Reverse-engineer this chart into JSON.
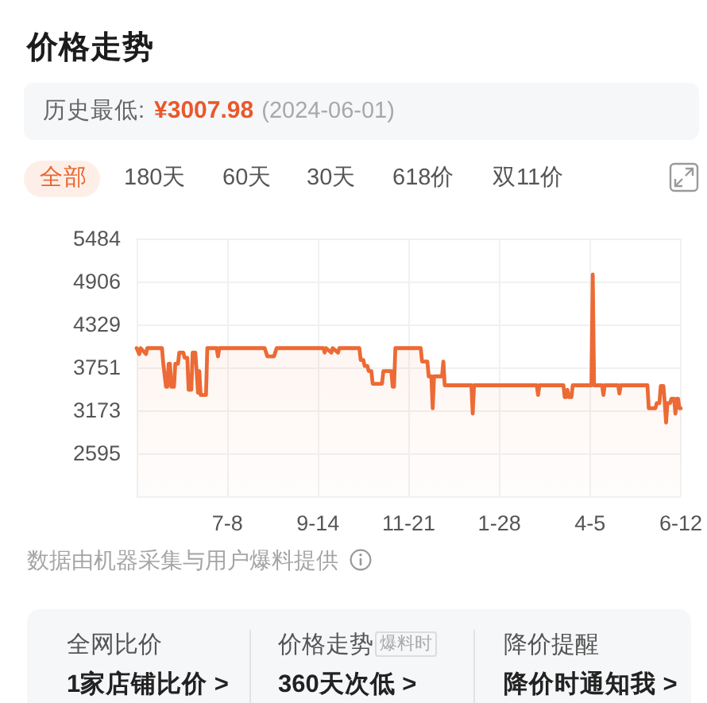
{
  "chart_data": {
    "type": "area",
    "title": "价格走势",
    "subtitle": "历史最低:",
    "annotations": [
      "¥3007.98",
      "(2024-06-01)",
      "全部",
      "180天",
      "60天",
      "30天",
      "618价",
      "双11价",
      "数据由机器采集与用户爆料提供",
      "全网比价",
      "1家店铺比价 >",
      "价格走势",
      "爆料时",
      "360天次低 >",
      "降价提醒",
      "降价时通知我 >"
    ],
    "x": [
      "2023-05-01",
      "2023-05-03",
      "2023-05-04",
      "2023-05-08",
      "2023-05-09",
      "2023-05-20",
      "2023-05-21",
      "2023-05-23",
      "2023-05-24",
      "2023-05-25",
      "2023-05-26",
      "2023-05-27",
      "2023-05-29",
      "2023-05-30",
      "2023-06-01",
      "2023-06-02",
      "2023-06-05",
      "2023-06-06",
      "2023-06-08",
      "2023-06-09",
      "2023-06-11",
      "2023-06-12",
      "2023-06-14",
      "2023-06-15",
      "2023-06-16",
      "2023-06-17",
      "2023-06-18",
      "2023-06-22",
      "2023-06-23",
      "2023-06-30",
      "2023-07-01",
      "2023-07-02",
      "2023-08-05",
      "2023-08-07",
      "2023-08-12",
      "2023-08-14",
      "2023-09-18",
      "2023-09-19",
      "2023-09-20",
      "2023-09-24",
      "2023-09-25",
      "2023-09-29",
      "2023-09-30",
      "2023-10-15",
      "2023-10-16",
      "2023-10-18",
      "2023-10-19",
      "2023-10-21",
      "2023-10-22",
      "2023-10-24",
      "2023-10-25",
      "2023-11-01",
      "2023-11-02",
      "2023-11-08",
      "2023-11-09",
      "2023-11-10",
      "2023-11-11",
      "2023-11-30",
      "2023-12-01",
      "2023-12-05",
      "2023-12-06",
      "2023-12-08",
      "2023-12-09",
      "2023-12-10",
      "2023-12-16",
      "2023-12-17",
      "2023-12-18",
      "2024-01-07",
      "2024-01-08",
      "2024-01-09",
      "2024-02-25",
      "2024-02-26",
      "2024-02-27",
      "2024-03-16",
      "2024-03-17",
      "2024-03-18",
      "2024-03-19",
      "2024-03-20",
      "2024-03-22",
      "2024-03-23",
      "2024-04-06",
      "2024-04-07",
      "2024-04-08",
      "2024-04-14",
      "2024-04-15",
      "2024-04-16",
      "2024-04-26",
      "2024-04-27",
      "2024-04-28",
      "2024-05-18",
      "2024-05-19",
      "2024-05-24",
      "2024-05-25",
      "2024-05-27",
      "2024-05-28",
      "2024-05-30",
      "2024-05-31",
      "2024-06-01",
      "2024-06-02",
      "2024-06-04",
      "2024-06-05",
      "2024-06-07",
      "2024-06-08",
      "2024-06-09",
      "2024-06-10",
      "2024-06-11",
      "2024-06-12"
    ],
    "values": [
      4010,
      3930,
      4010,
      3930,
      4010,
      4010,
      3800,
      3490,
      3490,
      3800,
      3800,
      3490,
      3490,
      3800,
      3800,
      3950,
      3950,
      3880,
      3880,
      3450,
      3450,
      3950,
      3950,
      3700,
      3410,
      3700,
      3380,
      3380,
      4010,
      4010,
      3900,
      4010,
      4010,
      3900,
      3900,
      4010,
      4010,
      3950,
      4010,
      3950,
      4010,
      3950,
      4010,
      4010,
      3850,
      3850,
      3770,
      3770,
      3700,
      3700,
      3530,
      3530,
      3700,
      3700,
      3490,
      3490,
      4010,
      4010,
      3830,
      3830,
      3630,
      3630,
      3200,
      3630,
      3630,
      3830,
      3510,
      3510,
      3130,
      3510,
      3510,
      3380,
      3510,
      3510,
      3350,
      3350,
      3450,
      3350,
      3350,
      3510,
      3510,
      5000,
      3510,
      3510,
      3380,
      3510,
      3510,
      3400,
      3510,
      3510,
      3200,
      3200,
      3270,
      3270,
      3500,
      3500,
      3270,
      3007.98,
      3270,
      3270,
      3330,
      3330,
      3130,
      3330,
      3330,
      3200,
      3200
    ],
    "color": "#ec6a35",
    "xlim": [
      "2023-05-01",
      "2024-06-12"
    ],
    "xticks": [
      {
        "value": "2023-07-08",
        "label": "7-8"
      },
      {
        "value": "2023-09-14",
        "label": "9-14"
      },
      {
        "value": "2023-11-21",
        "label": "11-21"
      },
      {
        "value": "2024-01-28",
        "label": "1-28"
      },
      {
        "value": "2024-04-05",
        "label": "4-5"
      },
      {
        "value": "2024-06-12",
        "label": "6-12"
      }
    ],
    "ylim": [
      2017,
      5484
    ],
    "yticks": [
      {
        "value": 2017,
        "label": null
      },
      2595,
      3173,
      3751,
      4329,
      4906,
      5484
    ],
    "grid": true
  }
}
